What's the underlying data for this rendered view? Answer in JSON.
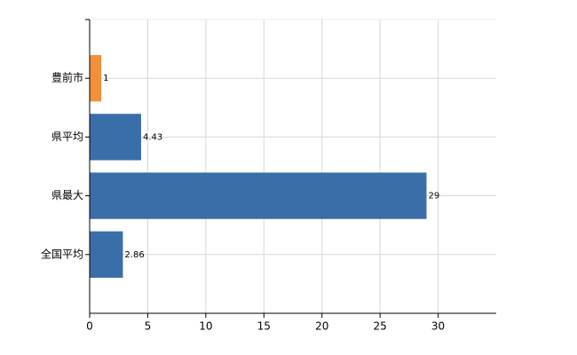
{
  "chart_data": {
    "type": "hbar",
    "categories": [
      "豊前市",
      "県平均",
      "県最大",
      "全国平均"
    ],
    "values": [
      1,
      4.43,
      29,
      2.86
    ],
    "colors": [
      "#f0913a",
      "#3a6ea8",
      "#3a6ea8",
      "#3a6ea8"
    ],
    "xlim": [
      0,
      35
    ],
    "xticks": [
      0,
      5,
      10,
      15,
      20,
      25,
      30
    ],
    "grid": true
  }
}
